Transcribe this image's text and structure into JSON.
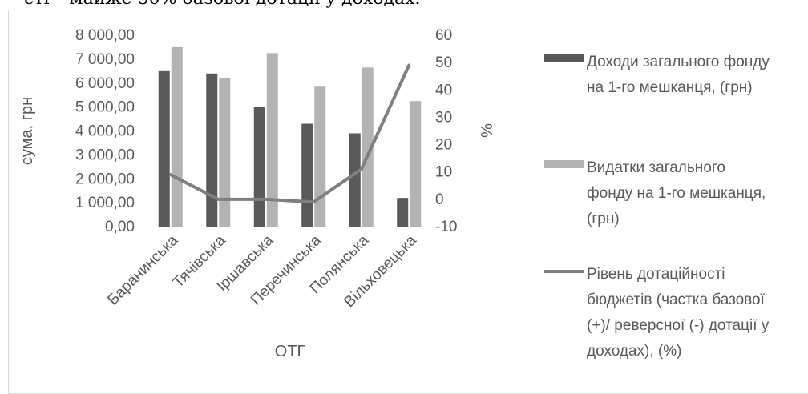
{
  "top_text": "сті – майже 50% базової дотації у доходах.",
  "chart_data": {
    "type": "bar",
    "categories": [
      "Баранинська",
      "Тячівська",
      "Іршавська",
      "Перечинська",
      "Полянська",
      "Вільховецька"
    ],
    "series": [
      {
        "name": "Доходи загального фонду на 1-го мешканця, (грн)",
        "kind": "bar",
        "axis": "left",
        "color": "#595959",
        "values": [
          6500,
          6400,
          5000,
          4300,
          3900,
          1200
        ]
      },
      {
        "name": "Видатки загального фонду на 1-го мешканця, (грн)",
        "kind": "bar",
        "axis": "left",
        "color": "#b3b3b3",
        "values": [
          7500,
          6200,
          7250,
          5850,
          6650,
          5250
        ]
      },
      {
        "name": "Рівень дотаційності бюджетів (частка базової (+)/ реверсної (-) дотації у доходах), (%)",
        "kind": "line",
        "axis": "right",
        "color": "#7f7f7f",
        "values": [
          9,
          0,
          0,
          -1,
          11,
          49
        ]
      }
    ],
    "ylabel": "сума, грн",
    "y2label": "%",
    "xlabel": "ОТГ",
    "ylim": [
      0,
      8000
    ],
    "y2lim": [
      -10,
      60
    ],
    "yticks": [
      "0,00",
      "1 000,00",
      "2 000,00",
      "3 000,00",
      "4 000,00",
      "5 000,00",
      "6 000,00",
      "7 000,00",
      "8 000,00"
    ],
    "y2ticks": [
      "-10",
      "0",
      "10",
      "20",
      "30",
      "40",
      "50",
      "60"
    ],
    "legend": {
      "placement": "right",
      "entries": [
        [
          "Доходи загального фонду",
          "на 1-го мешканця, (грн)"
        ],
        [
          "Видатки загального",
          "фонду на 1-го мешканця,",
          "(грн)"
        ],
        [
          "Рівень дотаційності",
          "бюджетів (частка базової",
          "(+)/ реверсної (-) дотації у",
          "доходах), (%)"
        ]
      ]
    },
    "grid": false
  }
}
